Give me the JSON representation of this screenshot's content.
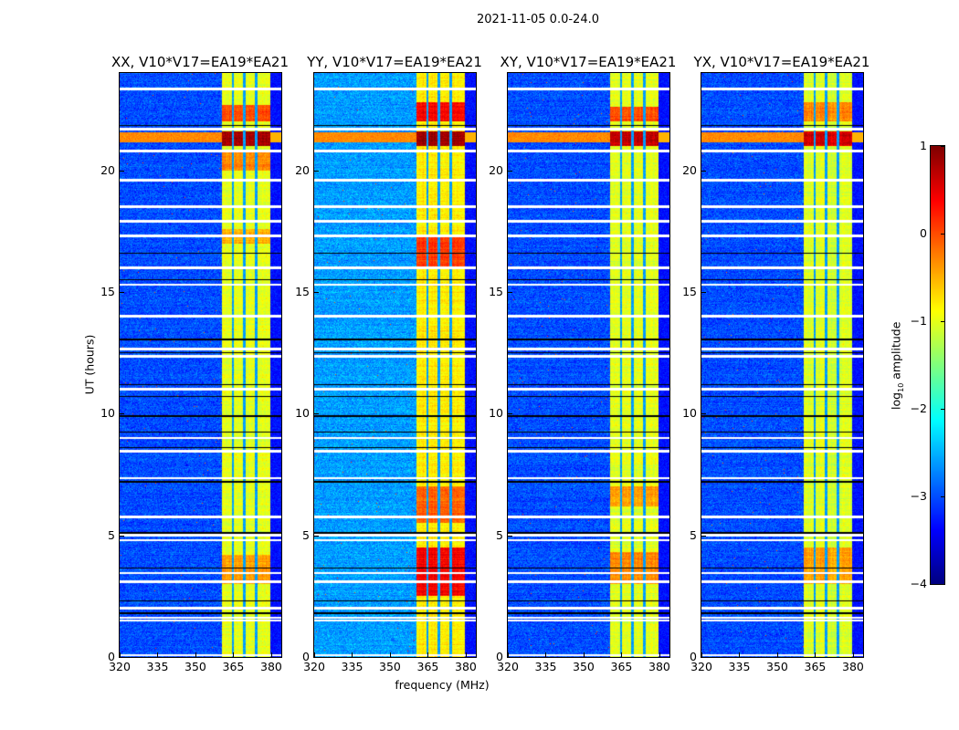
{
  "chart_data": {
    "type": "heatmap",
    "title": "2021-11-05 0.0-24.0",
    "xlabel": "frequency (MHz)",
    "ylabel": "UT (hours)",
    "xlim": [
      320,
      384
    ],
    "ylim": [
      0,
      24
    ],
    "x_ticks": [
      "320",
      "335",
      "350",
      "365",
      "380"
    ],
    "x_tick_values": [
      320,
      335,
      350,
      365,
      380
    ],
    "y_ticks": [
      "0",
      "5",
      "10",
      "15",
      "20"
    ],
    "y_tick_values": [
      0,
      5,
      10,
      15,
      20
    ],
    "colormap": "jet",
    "colorbar": {
      "label": "log10 amplitude",
      "label_main": "log",
      "label_sub": "10",
      "label_rest": " amplitude",
      "range": [
        -4,
        1
      ],
      "ticks": [
        "1",
        "0",
        "−1",
        "−2",
        "−3",
        "−4"
      ],
      "tick_values": [
        1,
        0,
        -1,
        -2,
        -3,
        -4
      ]
    },
    "rfi_band_mhz": [
      360.5,
      379.5
    ],
    "band_gaps_mhz": [
      364.8,
      369.3,
      374.0
    ],
    "broadband_rfi_hours": [
      21.15,
      21.55
    ],
    "flagged_white_hours": [
      23.35,
      21.7,
      20.8,
      19.6,
      18.5,
      17.9,
      17.3,
      16.0,
      15.3,
      14.0,
      12.65,
      12.35,
      11.0,
      9.0,
      8.45,
      7.35,
      5.75,
      5.0,
      4.8,
      3.45,
      3.1,
      2.0,
      1.62,
      1.5,
      0.08
    ],
    "flagged_black_hours": [
      21.85,
      16.6,
      15.5,
      13.05,
      12.5,
      11.2,
      10.7,
      9.9,
      9.25,
      8.6,
      7.2,
      5.1,
      3.65,
      2.3,
      1.8
    ],
    "panels": [
      {
        "title": "XX, V10*V17=EA19*EA21",
        "background": -3.0,
        "band_level": -1.0,
        "hotspots": [
          [
            21.0,
            21.6,
            0.8
          ],
          [
            22.0,
            22.7,
            0.0
          ],
          [
            20.0,
            20.8,
            -0.3
          ],
          [
            3.0,
            4.2,
            -0.4
          ],
          [
            17.0,
            17.6,
            -0.5
          ]
        ]
      },
      {
        "title": "YY, V10*V17=EA19*EA21",
        "background": -2.6,
        "band_level": -0.8,
        "hotspots": [
          [
            21.0,
            21.6,
            0.85
          ],
          [
            22.0,
            22.8,
            0.4
          ],
          [
            2.5,
            4.5,
            0.4
          ],
          [
            5.5,
            7.0,
            -0.1
          ],
          [
            16.0,
            17.3,
            0.1
          ]
        ]
      },
      {
        "title": "XY, V10*V17=EA19*EA21",
        "background": -3.0,
        "band_level": -1.0,
        "hotspots": [
          [
            21.0,
            21.6,
            0.7
          ],
          [
            22.0,
            22.6,
            0.0
          ],
          [
            3.0,
            4.3,
            -0.3
          ],
          [
            6.2,
            7.0,
            -0.4
          ]
        ]
      },
      {
        "title": "YX, V10*V17=EA19*EA21",
        "background": -3.0,
        "band_level": -1.05,
        "hotspots": [
          [
            21.0,
            21.6,
            0.6
          ],
          [
            22.0,
            22.8,
            -0.3
          ],
          [
            3.0,
            4.5,
            -0.4
          ]
        ]
      }
    ]
  }
}
